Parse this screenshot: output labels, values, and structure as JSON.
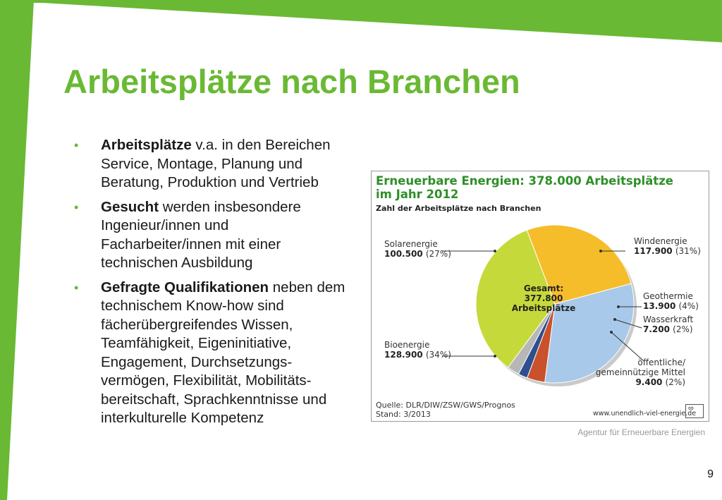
{
  "slide": {
    "title": "Arbeitsplätze nach Branchen",
    "accent_color": "#6ab934",
    "page_number": "9",
    "credit": "Agentur für Erneuerbare Energien",
    "bullet_icon": "bullet-dot-icon",
    "bullets": [
      {
        "bold": "Arbeitsplätze",
        "text": " v.a. in den Bereichen Service, Montage, Planung und Beratung, Produktion und Vertrieb"
      },
      {
        "bold": "Gesucht",
        "text": " werden insbesondere Ingenieur/innen und Facharbeiter/innen mit einer technischen Ausbildung"
      },
      {
        "bold": "Gefragte Qualifikationen",
        "text": " neben dem technischem Know-how sind fächerübergreifendes Wissen, Teamfähigkeit, Eigeninitiative, Engagement, Durchsetzungs-vermögen, Flexibilität, Mobilitäts-bereitschaft, Sprachkenntnisse und interkulturelle Kompetenz"
      }
    ]
  },
  "chart_data": {
    "type": "pie",
    "title_line1": "Erneuerbare Energien: 378.000 Arbeitsplätze",
    "title_line2": "im Jahr 2012",
    "subtitle": "Zahl der Arbeitsplätze nach Branchen",
    "center_label": [
      "Gesamt:",
      "377.800",
      "Arbeitsplätze"
    ],
    "total": 377800,
    "slices": [
      {
        "name": "Windenergie",
        "value": 117900,
        "value_label": "117.900",
        "percent_label": "(31%)",
        "color": "#a9c9ea"
      },
      {
        "name": "Geothermie",
        "value": 13900,
        "value_label": "13.900",
        "percent_label": "(4%)",
        "color": "#c9512b"
      },
      {
        "name": "Wasserkraft",
        "value": 7200,
        "value_label": "7.200",
        "percent_label": "(2%)",
        "color": "#2e4f8f"
      },
      {
        "name": "öffentliche/ gemeinnützige Mittel",
        "name_lines": [
          "öffentliche/",
          "gemeinnützige Mittel"
        ],
        "value": 9400,
        "value_label": "9.400",
        "percent_label": "(2%)",
        "color": "#b7b7b7"
      },
      {
        "name": "Bioenergie",
        "value": 128900,
        "value_label": "128.900",
        "percent_label": "(34%)",
        "color": "#c6d93a"
      },
      {
        "name": "Solarenergie",
        "value": 100500,
        "value_label": "100.500",
        "percent_label": "(27%)",
        "color": "#f6bd2a"
      }
    ],
    "source_line1": "Quelle: DLR/DIW/ZSW/GWS/Prognos",
    "source_line2": "Stand: 3/2013",
    "url": "www.unendlich-viel-energie.de",
    "logo_icon": "infinity-logo-icon"
  }
}
